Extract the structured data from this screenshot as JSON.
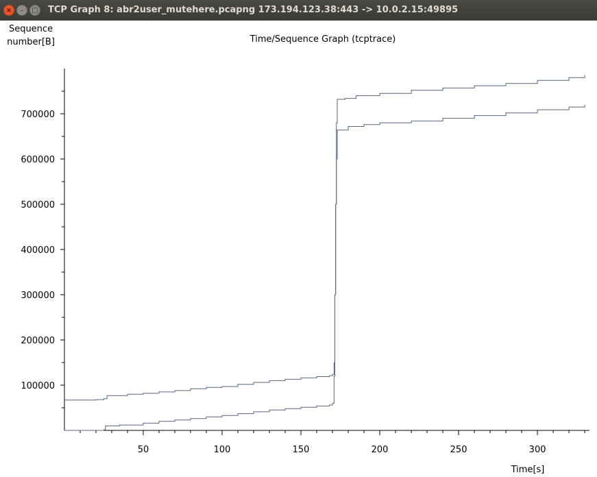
{
  "window": {
    "title": "TCP Graph 8: abr2user_mutehere.pcapng 173.194.123.38:443 -> 10.0.2.15:49895",
    "close_glyph": "×",
    "min_glyph": "–",
    "max_glyph": "□"
  },
  "chart_data": {
    "type": "line",
    "title": "Time/Sequence Graph (tcptrace)",
    "ylabel_line1": "Sequence",
    "ylabel_line2": "number[B]",
    "xlabel": "Time[s]",
    "xlim": [
      0,
      333
    ],
    "ylim": [
      0,
      800000
    ],
    "x_ticks": [
      50,
      100,
      150,
      200,
      250,
      300
    ],
    "y_ticks": [
      100000,
      200000,
      300000,
      400000,
      500000,
      600000,
      700000
    ],
    "grid": false,
    "colors": {
      "series": "#54657a",
      "axis": "#000000"
    },
    "series": [
      {
        "points": [
          [
            0,
            67000
          ],
          [
            10,
            67000
          ],
          [
            20,
            68000
          ],
          [
            25,
            70000
          ],
          [
            27,
            77000
          ],
          [
            40,
            80000
          ],
          [
            50,
            82000
          ],
          [
            60,
            85000
          ],
          [
            70,
            88000
          ],
          [
            80,
            92000
          ],
          [
            90,
            95000
          ],
          [
            100,
            97000
          ],
          [
            110,
            102000
          ],
          [
            120,
            106000
          ],
          [
            130,
            110000
          ],
          [
            140,
            113000
          ],
          [
            150,
            116000
          ],
          [
            160,
            119000
          ],
          [
            168,
            121000
          ],
          [
            170,
            124000
          ],
          [
            171,
            150000
          ],
          [
            171.5,
            300000
          ],
          [
            172,
            500000
          ],
          [
            172.5,
            680000
          ],
          [
            173,
            732000
          ],
          [
            178,
            734000
          ],
          [
            185,
            740000
          ],
          [
            200,
            745000
          ],
          [
            220,
            752000
          ],
          [
            240,
            757000
          ],
          [
            260,
            762000
          ],
          [
            280,
            767000
          ],
          [
            300,
            774000
          ],
          [
            320,
            780000
          ],
          [
            330,
            786000
          ]
        ]
      },
      {
        "points": [
          [
            0,
            0
          ],
          [
            25,
            1000
          ],
          [
            26,
            10000
          ],
          [
            35,
            12000
          ],
          [
            50,
            16000
          ],
          [
            60,
            20000
          ],
          [
            70,
            23000
          ],
          [
            80,
            26000
          ],
          [
            90,
            30000
          ],
          [
            100,
            33000
          ],
          [
            110,
            37000
          ],
          [
            120,
            41000
          ],
          [
            130,
            45000
          ],
          [
            140,
            48000
          ],
          [
            150,
            51000
          ],
          [
            160,
            54000
          ],
          [
            168,
            56000
          ],
          [
            170,
            60000
          ],
          [
            171,
            120000
          ],
          [
            171.5,
            300000
          ],
          [
            172,
            500000
          ],
          [
            172.5,
            600000
          ],
          [
            173,
            664000
          ],
          [
            180,
            672000
          ],
          [
            190,
            676000
          ],
          [
            200,
            680000
          ],
          [
            220,
            684000
          ],
          [
            240,
            690000
          ],
          [
            260,
            696000
          ],
          [
            280,
            702000
          ],
          [
            300,
            709000
          ],
          [
            320,
            715000
          ],
          [
            330,
            720000
          ]
        ]
      }
    ]
  }
}
